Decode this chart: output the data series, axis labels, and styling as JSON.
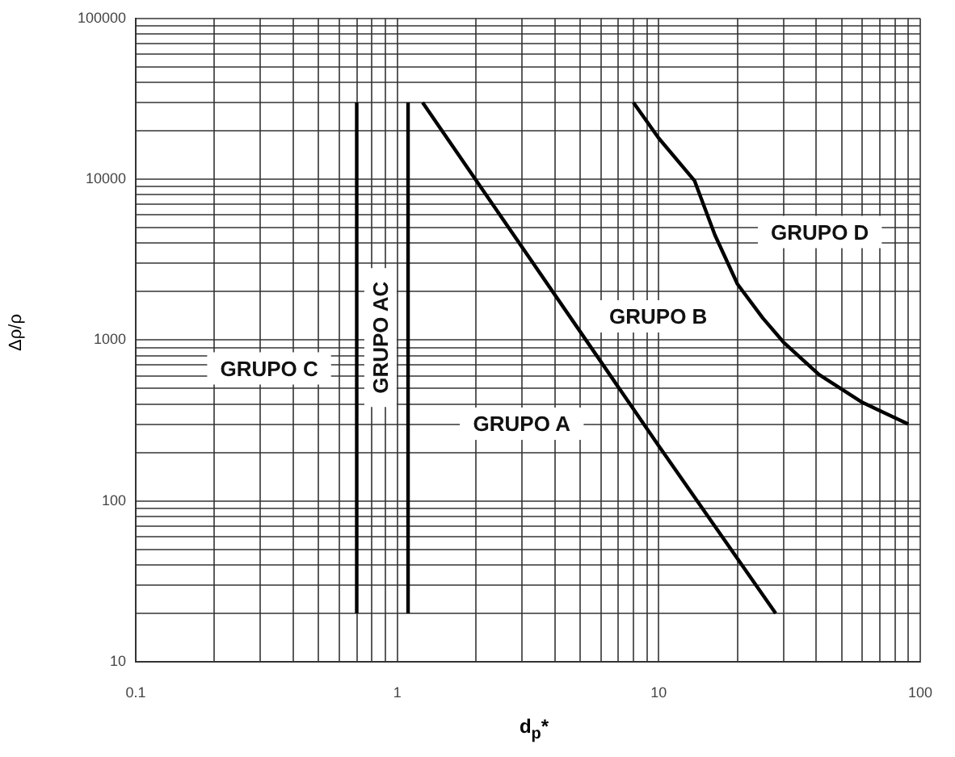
{
  "chart_data": {
    "type": "line",
    "xlabel": "d$_{p}$*",
    "ylabel": "Δρ/ρ",
    "log": "xy",
    "grid": true,
    "legend": false,
    "marker": "none",
    "line_style": "solid",
    "xlim": [
      0.1,
      100
    ],
    "xticks": [
      0.1,
      {
        "value": 0.2,
        "label": null
      },
      {
        "value": 0.3,
        "label": null
      },
      {
        "value": 0.4,
        "label": null
      },
      {
        "value": 0.5,
        "label": null
      },
      {
        "value": 0.6,
        "label": null
      },
      {
        "value": 0.7,
        "label": null
      },
      {
        "value": 0.8,
        "label": null
      },
      {
        "value": 0.9,
        "label": null
      },
      1,
      {
        "value": 2,
        "label": null
      },
      {
        "value": 3,
        "label": null
      },
      {
        "value": 4,
        "label": null
      },
      {
        "value": 5,
        "label": null
      },
      {
        "value": 6,
        "label": null
      },
      {
        "value": 7,
        "label": null
      },
      {
        "value": 8,
        "label": null
      },
      {
        "value": 9,
        "label": null
      },
      10,
      {
        "value": 20,
        "label": null
      },
      {
        "value": 30,
        "label": null
      },
      {
        "value": 40,
        "label": null
      },
      {
        "value": 50,
        "label": null
      },
      {
        "value": 60,
        "label": null
      },
      {
        "value": 70,
        "label": null
      },
      {
        "value": 80,
        "label": null
      },
      {
        "value": 90,
        "label": null
      },
      100
    ],
    "ylim": [
      10,
      100000
    ],
    "yticks": [
      10,
      {
        "value": 20,
        "label": null
      },
      {
        "value": 30,
        "label": null
      },
      {
        "value": 40,
        "label": null
      },
      {
        "value": 50,
        "label": null
      },
      {
        "value": 60,
        "label": null
      },
      {
        "value": 70,
        "label": null
      },
      {
        "value": 80,
        "label": null
      },
      {
        "value": 90,
        "label": null
      },
      100,
      {
        "value": 200,
        "label": null
      },
      {
        "value": 300,
        "label": null
      },
      {
        "value": 400,
        "label": null
      },
      {
        "value": 500,
        "label": null
      },
      {
        "value": 600,
        "label": null
      },
      {
        "value": 700,
        "label": null
      },
      {
        "value": 800,
        "label": null
      },
      {
        "value": 900,
        "label": null
      },
      1000,
      {
        "value": 2000,
        "label": null
      },
      {
        "value": 3000,
        "label": null
      },
      {
        "value": 4000,
        "label": null
      },
      {
        "value": 5000,
        "label": null
      },
      {
        "value": 6000,
        "label": null
      },
      {
        "value": 7000,
        "label": null
      },
      {
        "value": 8000,
        "label": null
      },
      {
        "value": 9000,
        "label": null
      },
      10000,
      {
        "value": 20000,
        "label": null
      },
      {
        "value": 30000,
        "label": null
      },
      {
        "value": 40000,
        "label": null
      },
      {
        "value": 50000,
        "label": null
      },
      {
        "value": 60000,
        "label": null
      },
      {
        "value": 70000,
        "label": null
      },
      {
        "value": 80000,
        "label": null
      },
      {
        "value": 90000,
        "label": null
      },
      100000
    ],
    "series": [
      {
        "color": "#000000",
        "x": [
          0.7,
          0.7
        ],
        "values": [
          20,
          30000
        ]
      },
      {
        "color": "#000000",
        "x": [
          1.1,
          1.1
        ],
        "values": [
          20,
          30000
        ]
      },
      {
        "color": "#000000",
        "x": [
          1.25,
          10,
          28
        ],
        "values": [
          30000,
          220,
          20
        ]
      },
      {
        "color": "#000000",
        "x": [
          8,
          10,
          13.7,
          16.4,
          20,
          25,
          30,
          41,
          60,
          90
        ],
        "values": [
          30000,
          18000,
          9800,
          4500,
          2230,
          1370,
          970,
          610,
          410,
          300
        ]
      }
    ],
    "annotations": [
      "GRUPO C",
      "GRUPO AC",
      "GRUPO A",
      "GRUPO B",
      "GRUPO D"
    ]
  }
}
